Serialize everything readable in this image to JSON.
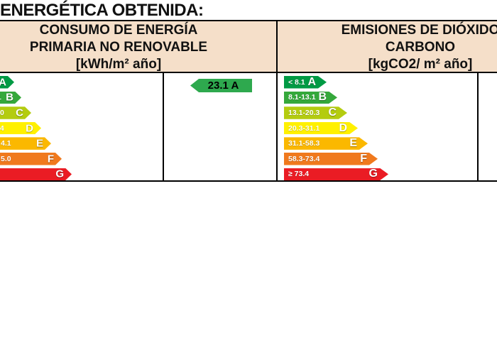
{
  "title": "ENERGÉTICA OBTENIDA:",
  "headers": {
    "consumo": {
      "line1": "CONSUMO DE ENERGÍA",
      "line2": "PRIMARIA NO RENOVABLE",
      "line3": "[kWh/m² año]"
    },
    "emisiones": {
      "line1": "EMISIONES DE DIÓXIDO",
      "line2": "CARBONO",
      "line3": "[kgCO2/ m² año]"
    }
  },
  "rating": {
    "value": "23.1 A"
  },
  "scales": {
    "consumo": {
      "rows": [
        {
          "letter": "A",
          "label": ""
        },
        {
          "letter": "B",
          "label": "1"
        },
        {
          "letter": "C",
          "label": "0"
        },
        {
          "letter": "D",
          "label": ".4"
        },
        {
          "letter": "E",
          "label": "4.1"
        },
        {
          "letter": "F",
          "label": "5.0"
        },
        {
          "letter": "G",
          "label": ""
        }
      ]
    },
    "emisiones": {
      "rows": [
        {
          "letter": "A",
          "label": "< 8.1"
        },
        {
          "letter": "B",
          "label": "8.1-13.1"
        },
        {
          "letter": "C",
          "label": "13.1-20.3"
        },
        {
          "letter": "D",
          "label": "20.3-31.1"
        },
        {
          "letter": "E",
          "label": "31.1-58.3"
        },
        {
          "letter": "F",
          "label": "58.3-73.4"
        },
        {
          "letter": "G",
          "label": "≥ 73.4"
        }
      ]
    }
  },
  "colors": {
    "header_bg": "#F5DFC9",
    "border": "#000000",
    "rating_arrow": "#2EA94E",
    "rating_text": "#000000",
    "scale": {
      "A": "#009A44",
      "B": "#35A83B",
      "C": "#B4CC0F",
      "D": "#FFF000",
      "E": "#FBB800",
      "F": "#F0791D",
      "G": "#EA1C24"
    }
  },
  "chart_data": [
    {
      "type": "bar",
      "title": "CONSUMO DE ENERGÍA PRIMARIA NO RENOVABLE [kWh/m² año]",
      "categories": [
        "A",
        "B",
        "C",
        "D",
        "E",
        "F",
        "G"
      ],
      "visible_range_fragments": [
        "",
        "1",
        "0",
        ".4",
        "4.1",
        "5.0",
        ""
      ],
      "rating": {
        "value": 23.1,
        "letter": "A"
      },
      "legend_position": "none",
      "note": "stepped rating arrows, scale cropped at left image edge"
    },
    {
      "type": "bar",
      "title": "EMISIONES DE DIÓXIDO CARBONO [kgCO2/ m² año]",
      "categories": [
        "A",
        "B",
        "C",
        "D",
        "E",
        "F",
        "G"
      ],
      "ranges": [
        "< 8.1",
        "8.1-13.1",
        "13.1-20.3",
        "20.3-31.1",
        "31.1-58.3",
        "58.3-73.4",
        "≥ 73.4"
      ],
      "legend_position": "none"
    }
  ]
}
